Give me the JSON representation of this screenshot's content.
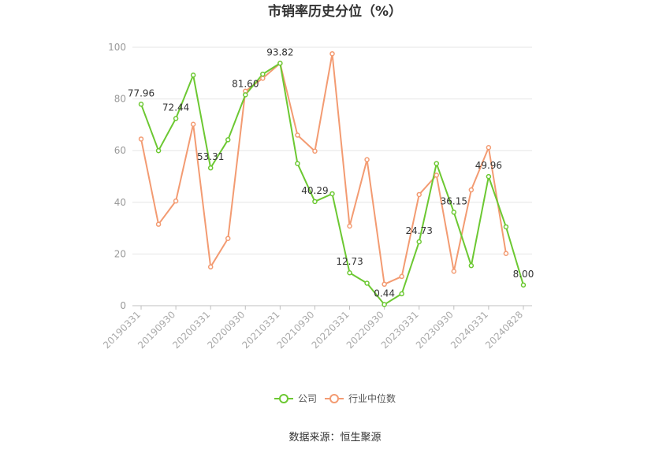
{
  "chart_data": {
    "type": "line",
    "title": "市销率历史分位（%）",
    "x": [
      "20190331",
      "20190630",
      "20190930",
      "20191231",
      "20200331",
      "20200630",
      "20200930",
      "20201231",
      "20210331",
      "20210630",
      "20210930",
      "20211231",
      "20220331",
      "20220630",
      "20220930",
      "20221231",
      "20230331",
      "20230630",
      "20230930",
      "20231231",
      "20240331",
      "20240630",
      "20240828"
    ],
    "x_tick_labels": [
      "20190331",
      "20190930",
      "20200331",
      "20200930",
      "20210331",
      "20210930",
      "20220331",
      "20220930",
      "20230331",
      "20230930",
      "20240331",
      "20240828"
    ],
    "ylim": [
      0,
      100
    ],
    "y_ticks": [
      0,
      20,
      40,
      60,
      80,
      100
    ],
    "grid": true,
    "legend_position": "bottom",
    "series": [
      {
        "name": "公司",
        "color": "#6cc832",
        "values": [
          77.96,
          60.0,
          72.44,
          89.2,
          53.31,
          64.2,
          81.6,
          89.6,
          93.82,
          55.0,
          40.29,
          43.3,
          12.73,
          8.7,
          0.44,
          4.6,
          24.73,
          55.0,
          36.15,
          15.5,
          49.96,
          30.5,
          8.0
        ],
        "labels": {
          "0": "77.96",
          "2": "72.44",
          "4": "53.31",
          "6": "81.60",
          "8": "93.82",
          "10": "40.29",
          "12": "12.73",
          "14": "0.44",
          "16": "24.73",
          "18": "36.15",
          "20": "49.96",
          "22": "8.00"
        }
      },
      {
        "name": "行业中位数",
        "color": "#f39b72",
        "values": [
          64.5,
          31.5,
          40.5,
          70.2,
          15.0,
          26.0,
          83.0,
          88.0,
          93.8,
          66.0,
          59.8,
          97.5,
          30.8,
          56.5,
          8.3,
          11.3,
          43.0,
          50.5,
          13.3,
          44.8,
          61.2,
          20.2,
          null
        ]
      }
    ]
  },
  "footer": {
    "source": "数据来源：恒生聚源"
  }
}
